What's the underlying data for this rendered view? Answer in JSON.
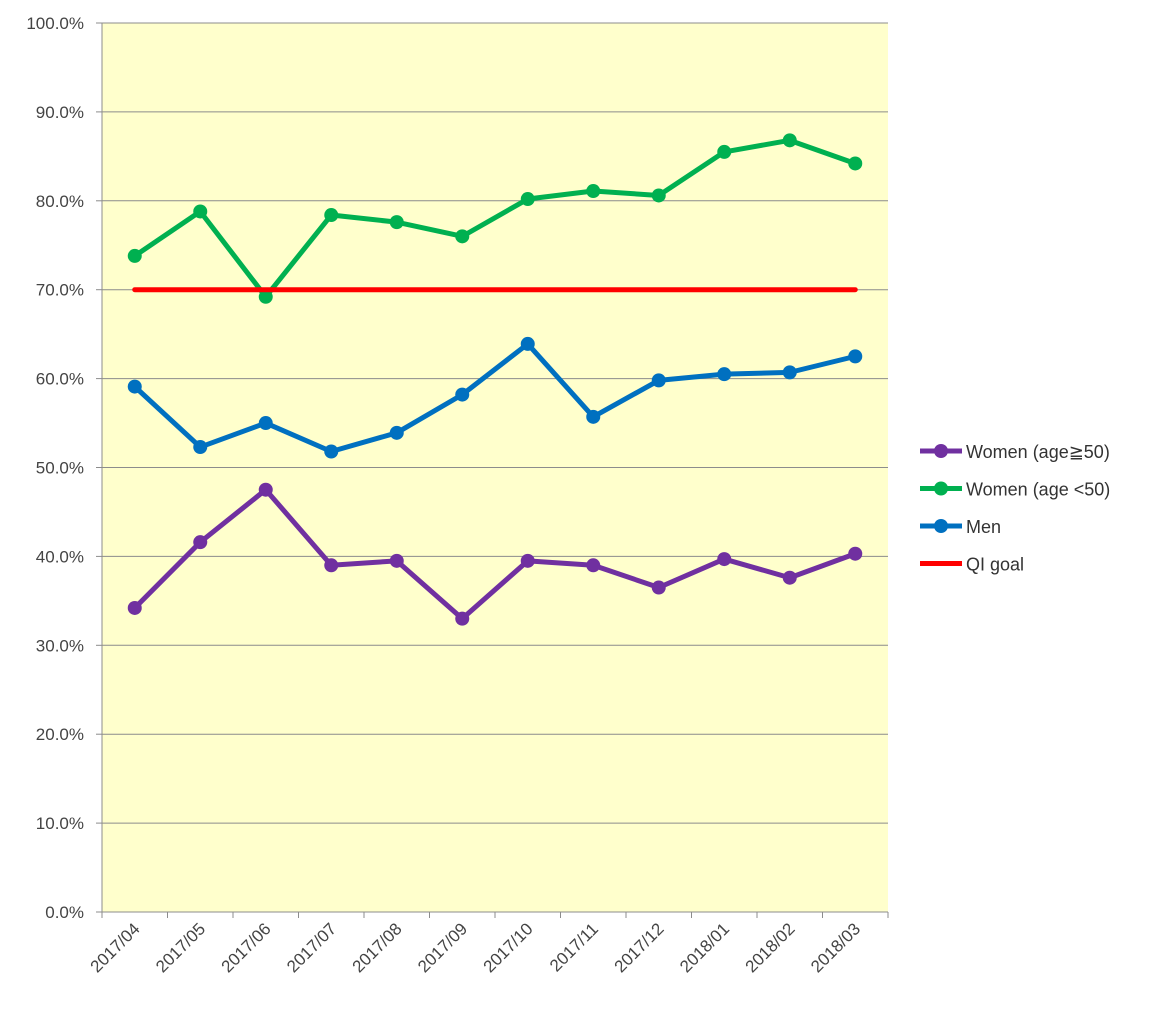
{
  "chart_data": {
    "type": "line",
    "title": "",
    "xlabel": "",
    "ylabel": "",
    "ylim": [
      0,
      100
    ],
    "y_ticks": [
      "0.0%",
      "10.0%",
      "20.0%",
      "30.0%",
      "40.0%",
      "50.0%",
      "60.0%",
      "70.0%",
      "80.0%",
      "90.0%",
      "100.0%"
    ],
    "categories": [
      "2017/04",
      "2017/05",
      "2017/06",
      "2017/07",
      "2017/08",
      "2017/09",
      "2017/10",
      "2017/11",
      "2017/12",
      "2018/01",
      "2018/02",
      "2018/03"
    ],
    "grid": true,
    "legend_position": "right",
    "plot_background": "#FFFFCC",
    "series": [
      {
        "name": "Women (age≧50)",
        "color": "#7030A0",
        "markers": true,
        "values": [
          34.2,
          41.6,
          47.5,
          39.0,
          39.5,
          33.0,
          39.5,
          39.0,
          36.5,
          39.7,
          37.6,
          40.3
        ]
      },
      {
        "name": "Women (age <50)",
        "color": "#00B050",
        "markers": true,
        "values": [
          73.8,
          78.8,
          69.2,
          78.4,
          77.6,
          76.0,
          80.2,
          81.1,
          80.6,
          85.5,
          86.8,
          84.2
        ]
      },
      {
        "name": "Men",
        "color": "#0070C0",
        "markers": true,
        "values": [
          59.1,
          52.3,
          55.0,
          51.8,
          53.9,
          58.2,
          63.9,
          55.7,
          59.8,
          60.5,
          60.7,
          62.5
        ]
      },
      {
        "name": "QI goal",
        "color": "#FF0000",
        "markers": false,
        "values": [
          70.0,
          70.0,
          70.0,
          70.0,
          70.0,
          70.0,
          70.0,
          70.0,
          70.0,
          70.0,
          70.0,
          70.0
        ]
      }
    ]
  }
}
